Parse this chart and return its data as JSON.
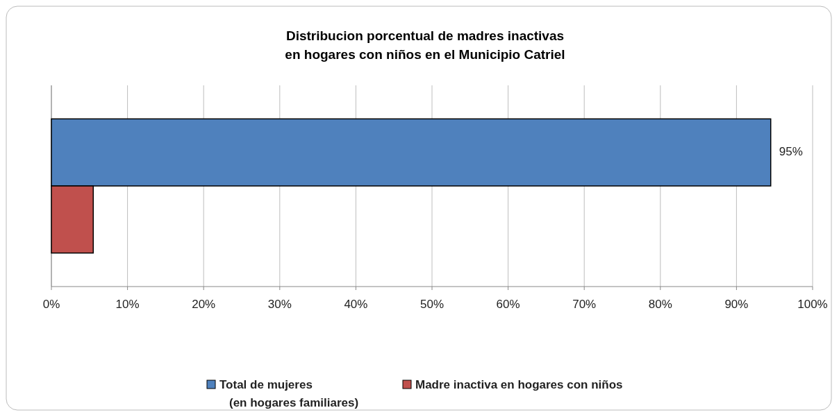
{
  "chart_data": {
    "type": "bar",
    "orientation": "horizontal",
    "title": "Distribucion porcentual de madres inactivas\nen hogares con niños en el Municipio Catriel",
    "categories": [
      null
    ],
    "series": [
      {
        "name": "Total de mujeres\n(en hogares familiares)",
        "color": "#4f81bd",
        "values": [
          94.5
        ],
        "value_labels": [
          "95%"
        ]
      },
      {
        "name": "Madre inactiva en hogares con niños",
        "color": "#c0504d",
        "values": [
          5.5
        ],
        "value_labels": [
          null
        ]
      }
    ],
    "xlim": [
      0,
      100
    ],
    "xticks": [
      {
        "value": 0,
        "label": "0%"
      },
      {
        "value": 10,
        "label": "10%"
      },
      {
        "value": 20,
        "label": "20%"
      },
      {
        "value": 30,
        "label": "30%"
      },
      {
        "value": 40,
        "label": "40%"
      },
      {
        "value": 50,
        "label": "50%"
      },
      {
        "value": 60,
        "label": "60%"
      },
      {
        "value": 70,
        "label": "70%"
      },
      {
        "value": 80,
        "label": "80%"
      },
      {
        "value": 90,
        "label": "90%"
      },
      {
        "value": 100,
        "label": "100%"
      }
    ],
    "grid": "x",
    "legend": "bottom"
  }
}
